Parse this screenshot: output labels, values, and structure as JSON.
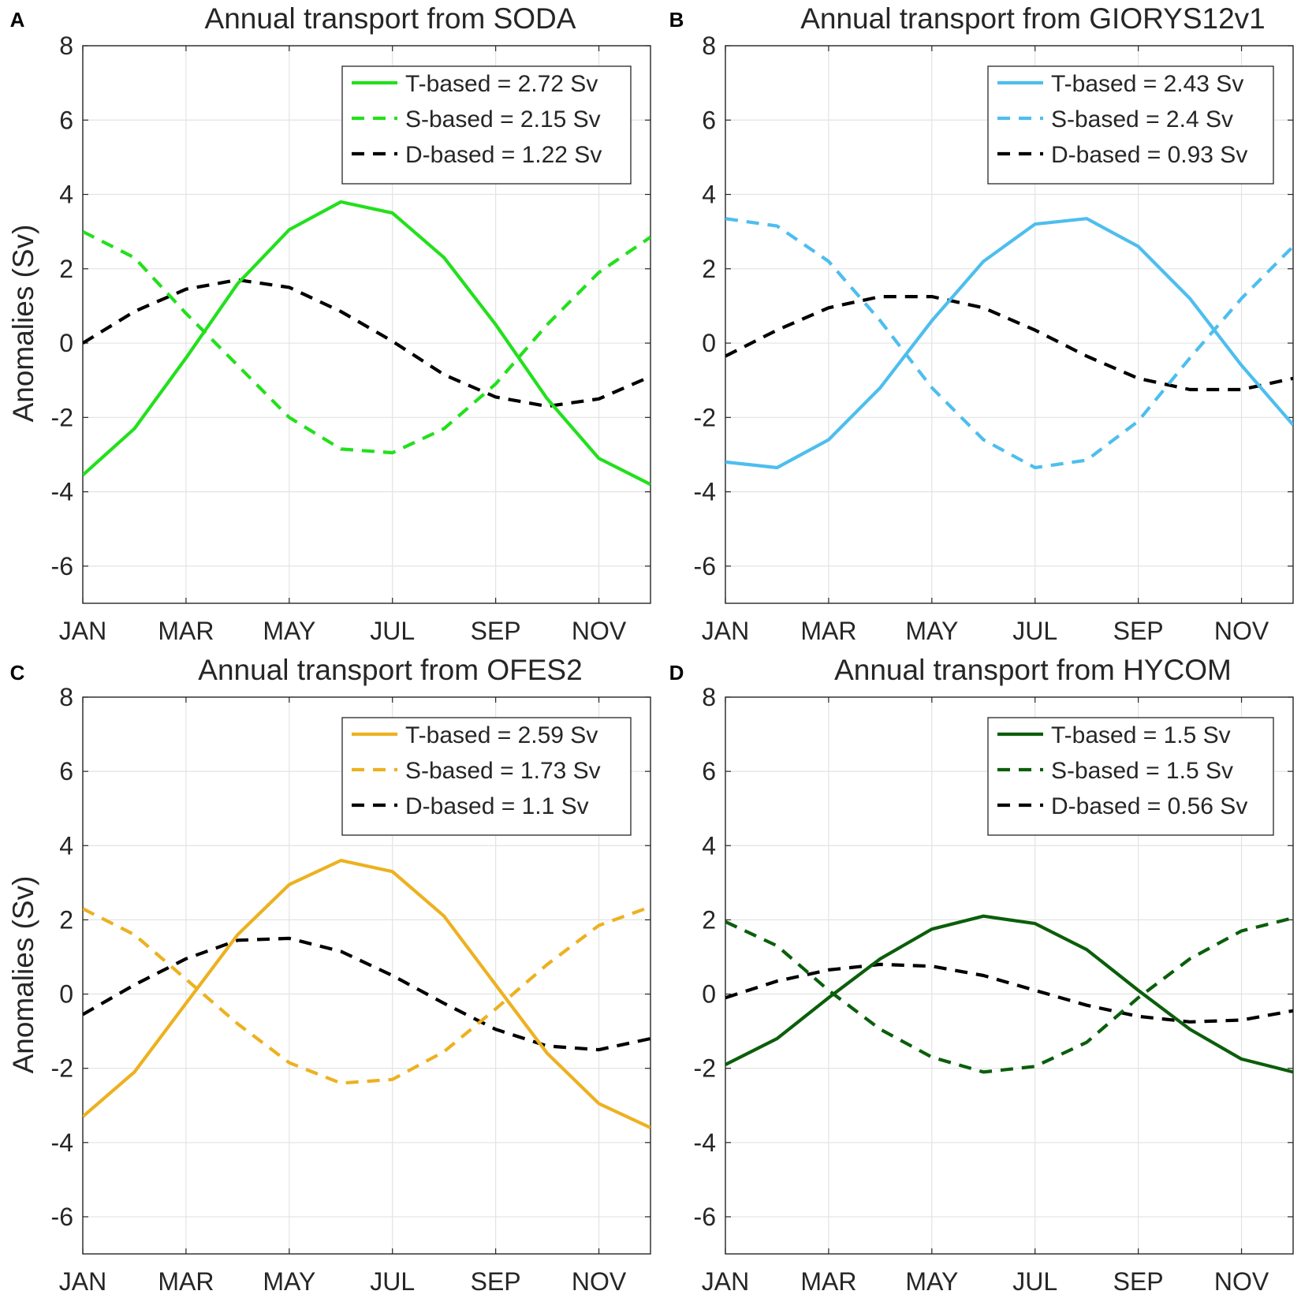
{
  "months_note": "12 monthly values per series, JAN..DEC",
  "chart_data": [
    {
      "type": "line",
      "panel_label": "A",
      "title": "Annual transport from SODA",
      "xlabel": "",
      "ylabel": "Anomalies (Sv)",
      "ylim": [
        -7,
        8
      ],
      "yticks": [
        -6,
        -4,
        -2,
        0,
        2,
        4,
        6,
        8
      ],
      "xticklabels": [
        "JAN",
        "MAR",
        "MAY",
        "JUL",
        "SEP",
        "NOV"
      ],
      "categories": [
        "JAN",
        "FEB",
        "MAR",
        "APR",
        "MAY",
        "JUN",
        "JUL",
        "AUG",
        "SEP",
        "OCT",
        "NOV",
        "DEC"
      ],
      "grid": true,
      "legend_position": "top-right",
      "series": [
        {
          "name": "T-based = 2.72 Sv",
          "color": "#22e01c",
          "dash": "solid",
          "values": [
            -3.55,
            -2.3,
            -0.4,
            1.6,
            3.05,
            3.8,
            3.5,
            2.3,
            0.5,
            -1.5,
            -3.1,
            -3.8
          ]
        },
        {
          "name": "S-based = 2.15 Sv",
          "color": "#22e01c",
          "dash": "dashed",
          "values": [
            3.0,
            2.3,
            0.8,
            -0.6,
            -2.0,
            -2.85,
            -2.95,
            -2.3,
            -1.1,
            0.5,
            1.9,
            2.85
          ]
        },
        {
          "name": "D-based = 1.22 Sv",
          "color": "#000000",
          "dash": "dashed",
          "values": [
            0.0,
            0.85,
            1.45,
            1.7,
            1.5,
            0.85,
            0.05,
            -0.85,
            -1.45,
            -1.7,
            -1.5,
            -0.9
          ]
        }
      ]
    },
    {
      "type": "line",
      "panel_label": "B",
      "title": "Annual transport from GIORYS12v1",
      "xlabel": "",
      "ylabel": "",
      "ylim": [
        -7,
        8
      ],
      "yticks": [
        -6,
        -4,
        -2,
        0,
        2,
        4,
        6,
        8
      ],
      "xticklabels": [
        "JAN",
        "MAR",
        "MAY",
        "JUL",
        "SEP",
        "NOV"
      ],
      "categories": [
        "JAN",
        "FEB",
        "MAR",
        "APR",
        "MAY",
        "JUN",
        "JUL",
        "AUG",
        "SEP",
        "OCT",
        "NOV",
        "DEC"
      ],
      "grid": true,
      "legend_position": "top-right",
      "series": [
        {
          "name": "T-based = 2.43 Sv",
          "color": "#4dbeee",
          "dash": "solid",
          "values": [
            -3.2,
            -3.35,
            -2.6,
            -1.2,
            0.6,
            2.2,
            3.2,
            3.35,
            2.6,
            1.2,
            -0.6,
            -2.2
          ]
        },
        {
          "name": "S-based = 2.4 Sv",
          "color": "#4dbeee",
          "dash": "dashed",
          "values": [
            3.35,
            3.15,
            2.2,
            0.6,
            -1.2,
            -2.6,
            -3.35,
            -3.15,
            -2.1,
            -0.4,
            1.2,
            2.6
          ]
        },
        {
          "name": "D-based = 0.93 Sv",
          "color": "#000000",
          "dash": "dashed",
          "values": [
            -0.35,
            0.35,
            0.95,
            1.25,
            1.25,
            0.95,
            0.35,
            -0.35,
            -0.95,
            -1.25,
            -1.25,
            -0.95
          ]
        }
      ]
    },
    {
      "type": "line",
      "panel_label": "C",
      "title": "Annual transport from OFES2",
      "xlabel": "",
      "ylabel": "Anomalies (Sv)",
      "ylim": [
        -7,
        8
      ],
      "yticks": [
        -6,
        -4,
        -2,
        0,
        2,
        4,
        6,
        8
      ],
      "xticklabels": [
        "JAN",
        "MAR",
        "MAY",
        "JUL",
        "SEP",
        "NOV"
      ],
      "categories": [
        "JAN",
        "FEB",
        "MAR",
        "APR",
        "MAY",
        "JUN",
        "JUL",
        "AUG",
        "SEP",
        "OCT",
        "NOV",
        "DEC"
      ],
      "grid": true,
      "legend_position": "top-right",
      "series": [
        {
          "name": "T-based = 2.59 Sv",
          "color": "#edb120",
          "dash": "solid",
          "values": [
            -3.3,
            -2.1,
            -0.25,
            1.6,
            2.95,
            3.6,
            3.3,
            2.1,
            0.25,
            -1.6,
            -2.95,
            -3.6
          ]
        },
        {
          "name": "S-based = 1.73 Sv",
          "color": "#edb120",
          "dash": "dashed",
          "values": [
            2.3,
            1.6,
            0.4,
            -0.8,
            -1.85,
            -2.4,
            -2.3,
            -1.55,
            -0.4,
            0.8,
            1.85,
            2.35
          ]
        },
        {
          "name": "D-based = 1.1 Sv",
          "color": "#000000",
          "dash": "dashed",
          "values": [
            -0.55,
            0.25,
            0.95,
            1.45,
            1.5,
            1.15,
            0.5,
            -0.25,
            -0.95,
            -1.4,
            -1.5,
            -1.2
          ]
        }
      ]
    },
    {
      "type": "line",
      "panel_label": "D",
      "title": "Annual transport from HYCOM",
      "xlabel": "",
      "ylabel": "",
      "ylim": [
        -7,
        8
      ],
      "yticks": [
        -6,
        -4,
        -2,
        0,
        2,
        4,
        6,
        8
      ],
      "xticklabels": [
        "JAN",
        "MAR",
        "MAY",
        "JUL",
        "SEP",
        "NOV"
      ],
      "categories": [
        "JAN",
        "FEB",
        "MAR",
        "APR",
        "MAY",
        "JUN",
        "JUL",
        "AUG",
        "SEP",
        "OCT",
        "NOV",
        "DEC"
      ],
      "grid": true,
      "legend_position": "top-right",
      "series": [
        {
          "name": "T-based = 1.5 Sv",
          "color": "#0b5e0b",
          "dash": "solid",
          "values": [
            -1.9,
            -1.2,
            -0.1,
            0.95,
            1.75,
            2.1,
            1.9,
            1.2,
            0.1,
            -0.95,
            -1.75,
            -2.1
          ]
        },
        {
          "name": "S-based = 1.5 Sv",
          "color": "#0b5e0b",
          "dash": "dashed",
          "values": [
            1.95,
            1.3,
            0.1,
            -0.95,
            -1.7,
            -2.1,
            -1.95,
            -1.3,
            -0.1,
            0.95,
            1.7,
            2.05
          ]
        },
        {
          "name": "D-based = 0.56 Sv",
          "color": "#000000",
          "dash": "dashed",
          "values": [
            -0.1,
            0.35,
            0.65,
            0.8,
            0.75,
            0.5,
            0.1,
            -0.3,
            -0.6,
            -0.75,
            -0.7,
            -0.45
          ]
        }
      ]
    }
  ]
}
